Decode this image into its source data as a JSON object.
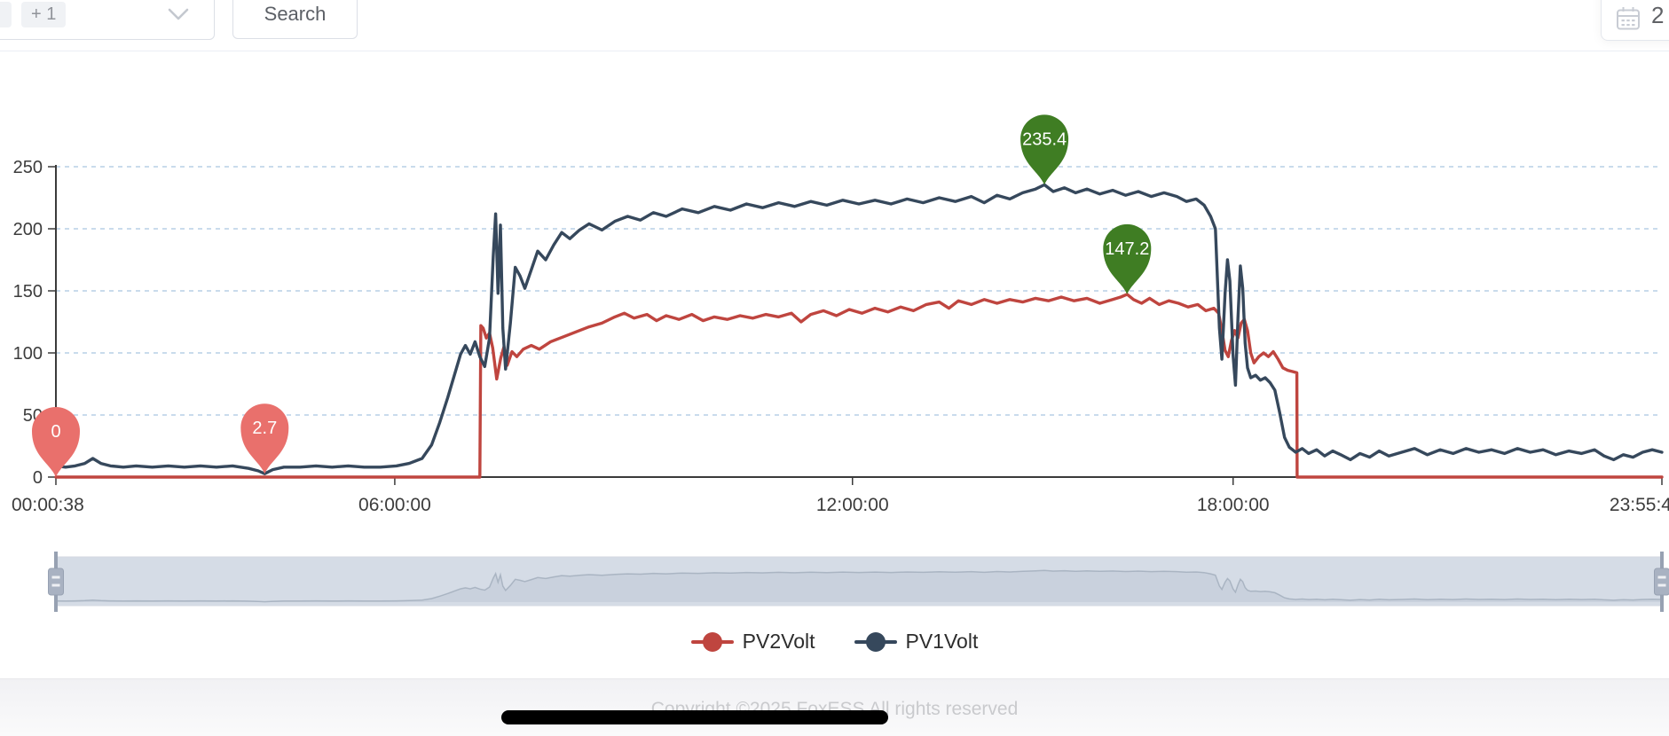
{
  "topbar": {
    "overflow_tag": "+ 1",
    "search_label": "Search",
    "date_value": "2"
  },
  "footer": {
    "copyright": "Copyright ©2025 FoxESS All rights reserved"
  },
  "chart_data": {
    "type": "line",
    "title": "",
    "xlabel": "",
    "ylabel": "",
    "ylim": [
      0,
      250
    ],
    "y_ticks": [
      0,
      50,
      100,
      150,
      200,
      250
    ],
    "x_ticks": [
      {
        "label": "00:00:38",
        "fr": 0
      },
      {
        "label": "06:00:00",
        "fr": 0.211
      },
      {
        "label": "12:00:00",
        "fr": 0.496
      },
      {
        "label": "18:00:00",
        "fr": 0.733
      },
      {
        "label": "23:55:4",
        "fr": 1
      }
    ],
    "grid": true,
    "legend_position": "bottom",
    "colors": {
      "grid": "#b7cfe6",
      "axis": "#3a3a3a",
      "tick_label": "#3c3c3c",
      "pin_min": "#e9706c",
      "pin_max": "#3f7d23",
      "zoom_filler": "rgba(167,183,204,0.38)",
      "zoom_track": "#f0f2f6",
      "zoom_handle": "#a9b2c2"
    },
    "series": [
      {
        "name": "PV2Volt",
        "color": "#bf453f",
        "points": [
          [
            0.0,
            0
          ],
          [
            0.264,
            0
          ],
          [
            0.2646,
            122
          ],
          [
            0.266,
            120
          ],
          [
            0.268,
            112
          ],
          [
            0.27,
            116
          ],
          [
            0.272,
            104
          ],
          [
            0.2745,
            79
          ],
          [
            0.277,
            96
          ],
          [
            0.279,
            105
          ],
          [
            0.281,
            90
          ],
          [
            0.284,
            101
          ],
          [
            0.287,
            97
          ],
          [
            0.291,
            103
          ],
          [
            0.296,
            106
          ],
          [
            0.301,
            103
          ],
          [
            0.308,
            109
          ],
          [
            0.316,
            113
          ],
          [
            0.324,
            117
          ],
          [
            0.332,
            121
          ],
          [
            0.34,
            124
          ],
          [
            0.348,
            129
          ],
          [
            0.354,
            132
          ],
          [
            0.36,
            128
          ],
          [
            0.368,
            131
          ],
          [
            0.374,
            126
          ],
          [
            0.38,
            130
          ],
          [
            0.388,
            127
          ],
          [
            0.396,
            131
          ],
          [
            0.403,
            126
          ],
          [
            0.41,
            129
          ],
          [
            0.418,
            127
          ],
          [
            0.426,
            130
          ],
          [
            0.434,
            128
          ],
          [
            0.442,
            131
          ],
          [
            0.45,
            129
          ],
          [
            0.458,
            132
          ],
          [
            0.464,
            125
          ],
          [
            0.47,
            131
          ],
          [
            0.478,
            134
          ],
          [
            0.486,
            130
          ],
          [
            0.494,
            135
          ],
          [
            0.502,
            132
          ],
          [
            0.51,
            136
          ],
          [
            0.518,
            133
          ],
          [
            0.526,
            137
          ],
          [
            0.534,
            134
          ],
          [
            0.542,
            139
          ],
          [
            0.55,
            141
          ],
          [
            0.556,
            136
          ],
          [
            0.562,
            142
          ],
          [
            0.57,
            139
          ],
          [
            0.578,
            143
          ],
          [
            0.586,
            140
          ],
          [
            0.594,
            143
          ],
          [
            0.602,
            141
          ],
          [
            0.61,
            144
          ],
          [
            0.618,
            142
          ],
          [
            0.626,
            145
          ],
          [
            0.634,
            142
          ],
          [
            0.642,
            144
          ],
          [
            0.65,
            140
          ],
          [
            0.658,
            143
          ],
          [
            0.663,
            145
          ],
          [
            0.667,
            147.2
          ],
          [
            0.671,
            143
          ],
          [
            0.676,
            140
          ],
          [
            0.681,
            144
          ],
          [
            0.687,
            139
          ],
          [
            0.693,
            142
          ],
          [
            0.699,
            140
          ],
          [
            0.705,
            137
          ],
          [
            0.711,
            139
          ],
          [
            0.716,
            134
          ],
          [
            0.721,
            136
          ],
          [
            0.724,
            132
          ],
          [
            0.726,
            118
          ],
          [
            0.728,
            102
          ],
          [
            0.73,
            97
          ],
          [
            0.732,
            110
          ],
          [
            0.734,
            118
          ],
          [
            0.736,
            112
          ],
          [
            0.738,
            124
          ],
          [
            0.74,
            127
          ],
          [
            0.742,
            118
          ],
          [
            0.744,
            100
          ],
          [
            0.746,
            92
          ],
          [
            0.749,
            97
          ],
          [
            0.752,
            100
          ],
          [
            0.755,
            97
          ],
          [
            0.758,
            101
          ],
          [
            0.761,
            95
          ],
          [
            0.764,
            88
          ],
          [
            0.767,
            86
          ],
          [
            0.77,
            85
          ],
          [
            0.7727,
            84
          ],
          [
            0.7729,
            0
          ],
          [
            1.0,
            0
          ]
        ]
      },
      {
        "name": "PV1Volt",
        "color": "#36485c",
        "points": [
          [
            0.0,
            9
          ],
          [
            0.006,
            8
          ],
          [
            0.012,
            9
          ],
          [
            0.018,
            11
          ],
          [
            0.023,
            15
          ],
          [
            0.028,
            11
          ],
          [
            0.034,
            9
          ],
          [
            0.042,
            8
          ],
          [
            0.05,
            9
          ],
          [
            0.06,
            8
          ],
          [
            0.07,
            9
          ],
          [
            0.08,
            8
          ],
          [
            0.09,
            9
          ],
          [
            0.1,
            8
          ],
          [
            0.11,
            9
          ],
          [
            0.12,
            7
          ],
          [
            0.126,
            5
          ],
          [
            0.13,
            2.7
          ],
          [
            0.135,
            6
          ],
          [
            0.142,
            8
          ],
          [
            0.152,
            8
          ],
          [
            0.162,
            9
          ],
          [
            0.172,
            8
          ],
          [
            0.182,
            9
          ],
          [
            0.192,
            8
          ],
          [
            0.202,
            8
          ],
          [
            0.212,
            9
          ],
          [
            0.22,
            11
          ],
          [
            0.228,
            15
          ],
          [
            0.234,
            26
          ],
          [
            0.239,
            44
          ],
          [
            0.244,
            64
          ],
          [
            0.249,
            86
          ],
          [
            0.252,
            99
          ],
          [
            0.255,
            106
          ],
          [
            0.258,
            99
          ],
          [
            0.261,
            109
          ],
          [
            0.264,
            97
          ],
          [
            0.267,
            89
          ],
          [
            0.27,
            112
          ],
          [
            0.2723,
            178
          ],
          [
            0.2738,
            212
          ],
          [
            0.2753,
            148
          ],
          [
            0.2768,
            203
          ],
          [
            0.2783,
            120
          ],
          [
            0.28,
            87
          ],
          [
            0.283,
            124
          ],
          [
            0.286,
            169
          ],
          [
            0.289,
            162
          ],
          [
            0.292,
            152
          ],
          [
            0.296,
            167
          ],
          [
            0.3,
            182
          ],
          [
            0.305,
            175
          ],
          [
            0.31,
            187
          ],
          [
            0.315,
            197
          ],
          [
            0.32,
            192
          ],
          [
            0.326,
            199
          ],
          [
            0.332,
            204
          ],
          [
            0.34,
            199
          ],
          [
            0.348,
            206
          ],
          [
            0.356,
            210
          ],
          [
            0.364,
            207
          ],
          [
            0.372,
            213
          ],
          [
            0.38,
            210
          ],
          [
            0.39,
            216
          ],
          [
            0.4,
            213
          ],
          [
            0.41,
            218
          ],
          [
            0.42,
            215
          ],
          [
            0.43,
            220
          ],
          [
            0.44,
            217
          ],
          [
            0.45,
            221
          ],
          [
            0.46,
            218
          ],
          [
            0.47,
            222
          ],
          [
            0.48,
            219
          ],
          [
            0.49,
            223
          ],
          [
            0.5,
            220
          ],
          [
            0.51,
            223
          ],
          [
            0.52,
            220
          ],
          [
            0.53,
            224
          ],
          [
            0.54,
            221
          ],
          [
            0.55,
            225
          ],
          [
            0.56,
            222
          ],
          [
            0.57,
            226
          ],
          [
            0.578,
            221
          ],
          [
            0.586,
            227
          ],
          [
            0.594,
            224
          ],
          [
            0.602,
            229
          ],
          [
            0.61,
            232
          ],
          [
            0.6155,
            235.4
          ],
          [
            0.621,
            230
          ],
          [
            0.628,
            233
          ],
          [
            0.635,
            229
          ],
          [
            0.642,
            232
          ],
          [
            0.65,
            228
          ],
          [
            0.658,
            231
          ],
          [
            0.666,
            227
          ],
          [
            0.674,
            230
          ],
          [
            0.682,
            226
          ],
          [
            0.69,
            229
          ],
          [
            0.698,
            226
          ],
          [
            0.704,
            222
          ],
          [
            0.71,
            224
          ],
          [
            0.715,
            219
          ],
          [
            0.719,
            210
          ],
          [
            0.722,
            200
          ],
          [
            0.7245,
            120
          ],
          [
            0.726,
            95
          ],
          [
            0.728,
            148
          ],
          [
            0.7295,
            175
          ],
          [
            0.731,
            158
          ],
          [
            0.733,
            98
          ],
          [
            0.7345,
            74
          ],
          [
            0.736,
            128
          ],
          [
            0.7375,
            170
          ],
          [
            0.739,
            152
          ],
          [
            0.7405,
            108
          ],
          [
            0.742,
            88
          ],
          [
            0.744,
            80
          ],
          [
            0.747,
            82
          ],
          [
            0.75,
            78
          ],
          [
            0.753,
            80
          ],
          [
            0.756,
            76
          ],
          [
            0.759,
            70
          ],
          [
            0.762,
            52
          ],
          [
            0.765,
            32
          ],
          [
            0.768,
            24
          ],
          [
            0.772,
            20
          ],
          [
            0.776,
            23
          ],
          [
            0.78,
            19
          ],
          [
            0.785,
            22
          ],
          [
            0.79,
            17
          ],
          [
            0.795,
            21
          ],
          [
            0.8,
            18
          ],
          [
            0.806,
            14
          ],
          [
            0.812,
            19
          ],
          [
            0.818,
            16
          ],
          [
            0.824,
            21
          ],
          [
            0.83,
            17
          ],
          [
            0.838,
            20
          ],
          [
            0.846,
            23
          ],
          [
            0.854,
            18
          ],
          [
            0.862,
            22
          ],
          [
            0.87,
            19
          ],
          [
            0.878,
            23
          ],
          [
            0.886,
            20
          ],
          [
            0.894,
            22
          ],
          [
            0.902,
            19
          ],
          [
            0.91,
            23
          ],
          [
            0.918,
            20
          ],
          [
            0.926,
            22
          ],
          [
            0.934,
            18
          ],
          [
            0.942,
            21
          ],
          [
            0.95,
            19
          ],
          [
            0.958,
            22
          ],
          [
            0.964,
            17
          ],
          [
            0.97,
            14
          ],
          [
            0.976,
            18
          ],
          [
            0.982,
            16
          ],
          [
            0.988,
            20
          ],
          [
            0.994,
            22
          ],
          [
            1.0,
            20
          ]
        ]
      }
    ],
    "markers": [
      {
        "kind": "min",
        "series": "PV2Volt",
        "label": "0",
        "fr": 0.0,
        "value": 0
      },
      {
        "kind": "min",
        "series": "PV1Volt",
        "label": "2.7",
        "fr": 0.13,
        "value": 2.7
      },
      {
        "kind": "max",
        "series": "PV1Volt",
        "label": "235.4",
        "fr": 0.6155,
        "value": 235.4
      },
      {
        "kind": "max",
        "series": "PV2Volt",
        "label": "147.2",
        "fr": 0.667,
        "value": 147.2
      }
    ],
    "legend": [
      "PV2Volt",
      "PV1Volt"
    ],
    "datazoom": {
      "range_start": 0,
      "range_end": 1,
      "shadow_series": "PV1Volt"
    }
  }
}
